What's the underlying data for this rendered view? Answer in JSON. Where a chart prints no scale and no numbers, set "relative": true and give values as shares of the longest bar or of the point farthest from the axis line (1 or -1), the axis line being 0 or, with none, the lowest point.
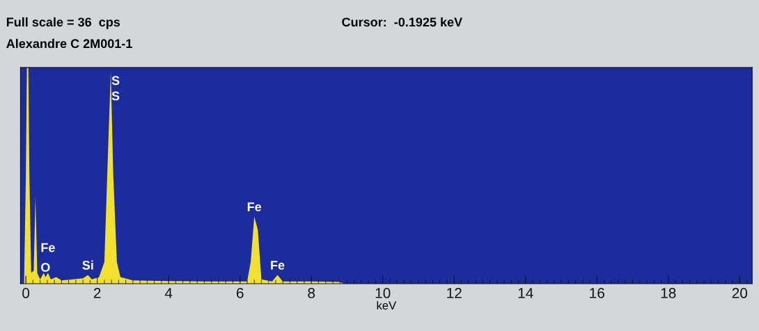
{
  "chart_data": {
    "type": "area",
    "relative": true,
    "xlabel": "keV",
    "xlim": [
      -0.15,
      20.35
    ],
    "xticks": [
      0,
      2,
      4,
      6,
      8,
      10,
      12,
      14,
      16,
      18,
      20
    ],
    "grid": false,
    "legend": false,
    "x": [
      -0.05,
      0.0,
      0.03,
      0.07,
      0.1,
      0.15,
      0.22,
      0.27,
      0.32,
      0.4,
      0.5,
      0.55,
      0.62,
      0.7,
      0.85,
      1.0,
      1.3,
      1.6,
      1.74,
      1.85,
      2.05,
      2.2,
      2.3,
      2.38,
      2.45,
      2.55,
      2.65,
      3.0,
      4.0,
      5.0,
      6.2,
      6.3,
      6.4,
      6.5,
      6.6,
      6.9,
      7.05,
      7.2,
      8.0,
      8.8,
      8.9,
      20
    ],
    "series": [
      {
        "color": "#f2e030",
        "values": [
          0,
          0.49,
          1.0,
          1.0,
          0.49,
          0.05,
          0.06,
          0.4,
          0.05,
          0.02,
          0.05,
          0.03,
          0.05,
          0.02,
          0.03,
          0.015,
          0.02,
          0.025,
          0.04,
          0.02,
          0.03,
          0.1,
          0.6,
          0.98,
          0.5,
          0.1,
          0.03,
          0.015,
          0.012,
          0.01,
          0.01,
          0.1,
          0.31,
          0.25,
          0.02,
          0.01,
          0.04,
          0.01,
          0.01,
          0.008,
          0,
          0
        ]
      }
    ],
    "annotations": [
      "Full scale = 36  cps",
      "Cursor:  -0.1925 keV",
      "Alexandre C 2M001-1",
      {
        "text": "S",
        "x": 2.38,
        "y": 0.98
      },
      {
        "text": "S",
        "x": 2.38,
        "y": 0.98
      },
      {
        "text": "Fe",
        "x": 6.4,
        "y": 0.31
      },
      {
        "text": "Fe",
        "x": 7.05,
        "y": 0.04
      },
      {
        "text": "Si",
        "x": 1.74,
        "y": 0.04
      },
      {
        "text": "O",
        "x": 0.55,
        "y": 0.03
      },
      {
        "text": "Fe",
        "x": 0.62,
        "y": 0.05
      }
    ]
  }
}
